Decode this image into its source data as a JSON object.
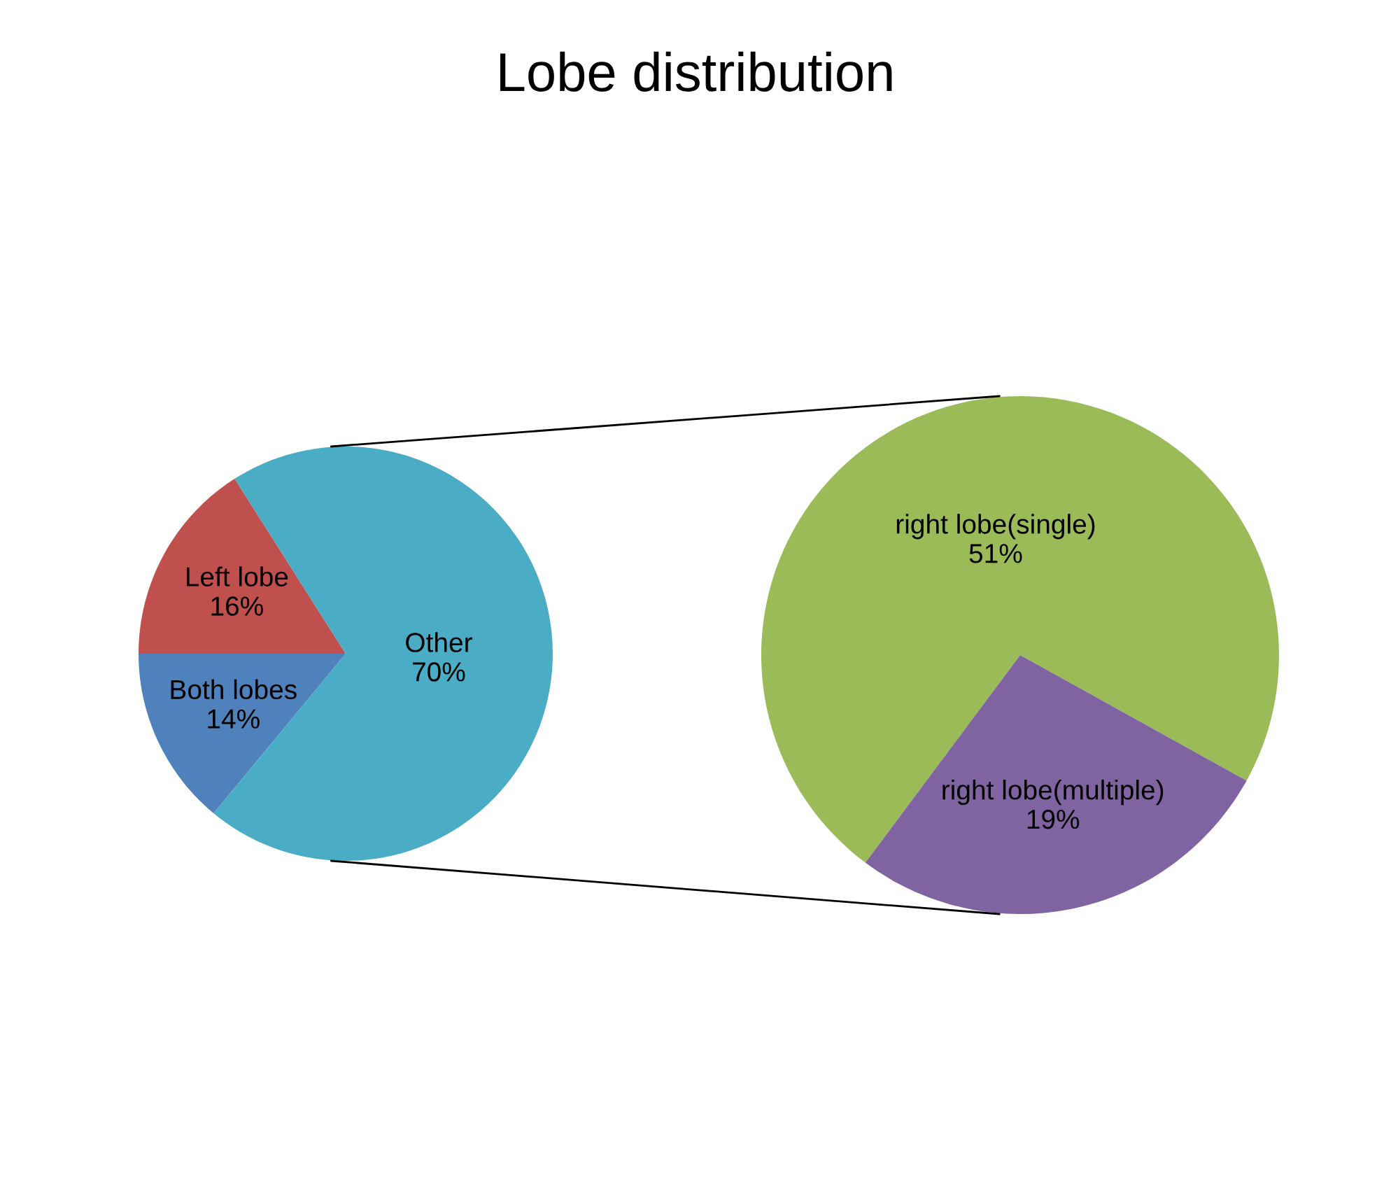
{
  "chart_data": [
    {
      "type": "pie",
      "title": "Lobe distribution",
      "categories": [
        "Left lobe",
        "Both lobes",
        "Other"
      ],
      "values": [
        16,
        14,
        70
      ],
      "value_labels": [
        "16%",
        "14%",
        "70%"
      ],
      "colors": [
        "#c0504d",
        "#4f81bd",
        "#4bacc6"
      ],
      "legend": false
    },
    {
      "type": "pie",
      "categories": [
        "right lobe(single)",
        "right lobe(multiple)"
      ],
      "values": [
        51,
        19
      ],
      "value_labels": [
        "51%",
        "19%"
      ],
      "colors": [
        "#9bbb59",
        "#8064a2"
      ],
      "legend": false
    }
  ]
}
